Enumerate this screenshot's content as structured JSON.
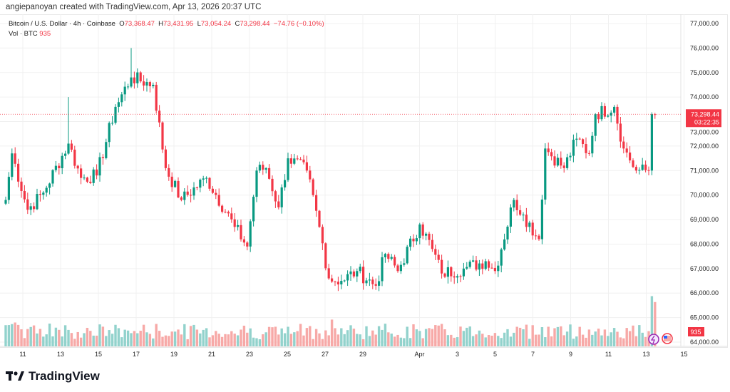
{
  "credit": "angiepanoyan created with TradingView.com, Apr 13, 2026 20:37 UTC",
  "legend": {
    "symbol": "Bitcoin / U.S. Dollar · 4h · Coinbase",
    "o_label": "O",
    "o": "73,368.47",
    "h_label": "H",
    "h": "73,431.95",
    "l_label": "L",
    "l": "73,054.24",
    "c_label": "C",
    "c": "73,298.44",
    "change": "−74.76 (−0.10%)",
    "vol_label": "Vol · BTC",
    "vol": "935"
  },
  "price_badge": {
    "price": "73,298.44",
    "countdown": "03:22:35",
    "color": "#f23645"
  },
  "vol_badge": "935",
  "brand": "TradingView",
  "colors": {
    "up": "#089981",
    "down": "#f23645",
    "vol_up": "#92d2cc",
    "vol_down": "#f7a9a7"
  },
  "chart_data": {
    "type": "candlestick",
    "title": "Bitcoin / U.S. Dollar · 4h · Coinbase",
    "ylim": [
      64000,
      77000
    ],
    "y_ticks": [
      "77,000.00",
      "76,000.00",
      "75,000.00",
      "74,000.00",
      "73,000.00",
      "72,000.00",
      "71,000.00",
      "70,000.00",
      "69,000.00",
      "68,000.00",
      "67,000.00",
      "66,000.00",
      "65,000.00",
      "64,000.00"
    ],
    "x_ticks": [
      {
        "label": "11",
        "day": 0
      },
      {
        "label": "13",
        "day": 2
      },
      {
        "label": "15",
        "day": 4
      },
      {
        "label": "17",
        "day": 6
      },
      {
        "label": "19",
        "day": 8
      },
      {
        "label": "21",
        "day": 10
      },
      {
        "label": "23",
        "day": 12
      },
      {
        "label": "25",
        "day": 14
      },
      {
        "label": "27",
        "day": 16
      },
      {
        "label": "29",
        "day": 18
      },
      {
        "label": "Apr",
        "day": 21
      },
      {
        "label": "3",
        "day": 23
      },
      {
        "label": "5",
        "day": 25
      },
      {
        "label": "7",
        "day": 27
      },
      {
        "label": "9",
        "day": 29
      },
      {
        "label": "11",
        "day": 31
      },
      {
        "label": "13",
        "day": 33
      },
      {
        "label": "15",
        "day": 35
      }
    ],
    "close_waypoints_by_candle": [
      [
        0,
        69800
      ],
      [
        2,
        71700
      ],
      [
        7,
        69400
      ],
      [
        12,
        70100
      ],
      [
        20,
        72100
      ],
      [
        24,
        70700
      ],
      [
        29,
        70800
      ],
      [
        35,
        73600
      ],
      [
        40,
        74800
      ],
      [
        47,
        74500
      ],
      [
        51,
        71100
      ],
      [
        56,
        69800
      ],
      [
        64,
        70700
      ],
      [
        73,
        68700
      ],
      [
        77,
        67900
      ],
      [
        80,
        71000
      ],
      [
        83,
        71100
      ],
      [
        87,
        69500
      ],
      [
        90,
        71500
      ],
      [
        96,
        71000
      ],
      [
        100,
        68700
      ],
      [
        103,
        66600
      ],
      [
        107,
        66500
      ],
      [
        112,
        66900
      ],
      [
        118,
        66300
      ],
      [
        121,
        67600
      ],
      [
        125,
        66900
      ],
      [
        132,
        68800
      ],
      [
        136,
        67800
      ],
      [
        139,
        66800
      ],
      [
        146,
        67000
      ],
      [
        153,
        67300
      ],
      [
        156,
        66900
      ],
      [
        162,
        69800
      ],
      [
        165,
        69200
      ],
      [
        170,
        68200
      ],
      [
        172,
        71900
      ],
      [
        178,
        71100
      ],
      [
        182,
        72300
      ],
      [
        186,
        71700
      ],
      [
        188,
        73300
      ],
      [
        194,
        73600
      ],
      [
        197,
        71900
      ],
      [
        201,
        71000
      ],
      [
        205,
        71000
      ],
      [
        206,
        73300
      ],
      [
        207,
        73298
      ]
    ],
    "volume_spikes": {
      "3": 1.6,
      "14": 1.5,
      "20": 1.7,
      "43": 1.2,
      "100": 1.3,
      "104": 1.8,
      "128": 1.2,
      "168": 1.7,
      "206": 2.3,
      "207": 2.2
    }
  }
}
